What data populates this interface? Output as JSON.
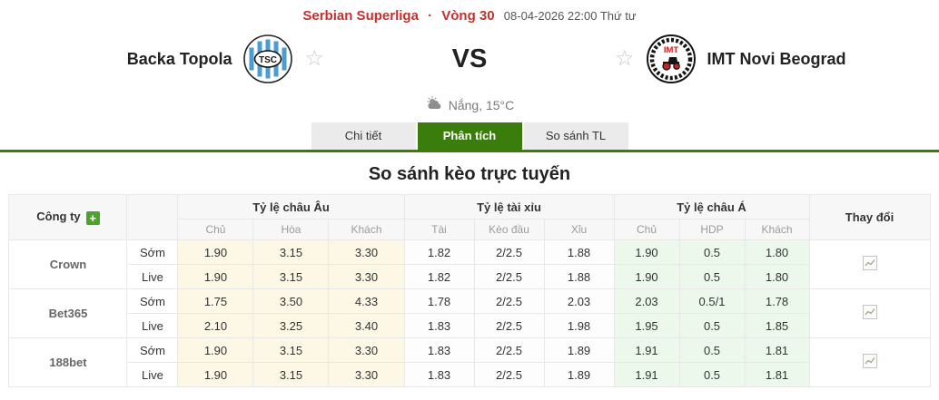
{
  "match_header": {
    "league": "Serbian Superliga",
    "dot": "·",
    "round": "Vòng 30",
    "kickoff": "08-04-2026 22:00 Thứ tư",
    "home": {
      "name": "Backa Topola",
      "logo_text": "TSC"
    },
    "away": {
      "name": "IMT Novi Beograd",
      "logo_text": "IMT"
    },
    "vs_label": "VS",
    "favorite_icon": "☆",
    "weather": "Nắng, 15°C"
  },
  "tabs": [
    {
      "id": "chi-tiet",
      "label": "Chi tiết",
      "active": false
    },
    {
      "id": "phan-tich",
      "label": "Phân tích",
      "active": true
    },
    {
      "id": "so-sanh-tl",
      "label": "So sánh TL",
      "active": false
    }
  ],
  "analysis": {
    "section_title": "So sánh kèo trực tuyến"
  },
  "odds_table": {
    "company_header": "Công ty",
    "add_company_label": "+",
    "change_header": "Thay đổi",
    "group_headers": [
      "Tỷ lệ châu Âu",
      "Tỷ lệ tài xỉu",
      "Tỷ lệ châu Á"
    ],
    "sub_headers": [
      "Chủ",
      "Hòa",
      "Khách",
      "Tài",
      "Kèo đầu",
      "Xỉu",
      "Chủ",
      "HDP",
      "Khách"
    ],
    "companies": [
      {
        "name": "Crown",
        "rows": [
          {
            "type": "Sớm",
            "odds": [
              "1.90",
              "3.15",
              "3.30",
              "1.82",
              "2/2.5",
              "1.88",
              "1.90",
              "0.5",
              "1.80"
            ]
          },
          {
            "type": "Live",
            "odds": [
              "1.90",
              "3.15",
              "3.30",
              "1.82",
              "2/2.5",
              "1.88",
              "1.90",
              "0.5",
              "1.80"
            ]
          }
        ]
      },
      {
        "name": "Bet365",
        "rows": [
          {
            "type": "Sớm",
            "odds": [
              "1.75",
              "3.50",
              "4.33",
              "1.78",
              "2/2.5",
              "2.03",
              "2.03",
              "0.5/1",
              "1.78"
            ]
          },
          {
            "type": "Live",
            "odds": [
              "2.10",
              "3.25",
              "3.40",
              "1.83",
              "2/2.5",
              "1.98",
              "1.95",
              "0.5",
              "1.85"
            ]
          }
        ]
      },
      {
        "name": "188bet",
        "rows": [
          {
            "type": "Sớm",
            "odds": [
              "1.90",
              "3.15",
              "3.30",
              "1.83",
              "2/2.5",
              "1.89",
              "1.91",
              "0.5",
              "1.81"
            ]
          },
          {
            "type": "Live",
            "odds": [
              "1.90",
              "3.15",
              "3.30",
              "1.83",
              "2/2.5",
              "1.89",
              "1.91",
              "0.5",
              "1.81"
            ]
          }
        ]
      }
    ]
  },
  "colors": {
    "accent_red": "#c62f2c",
    "accent_green": "#3a7d0d",
    "eu_cell_bg": "#fdf8e6",
    "ou_cell_bg": "#fdfdfd",
    "ah_cell_bg": "#edf8ec"
  }
}
